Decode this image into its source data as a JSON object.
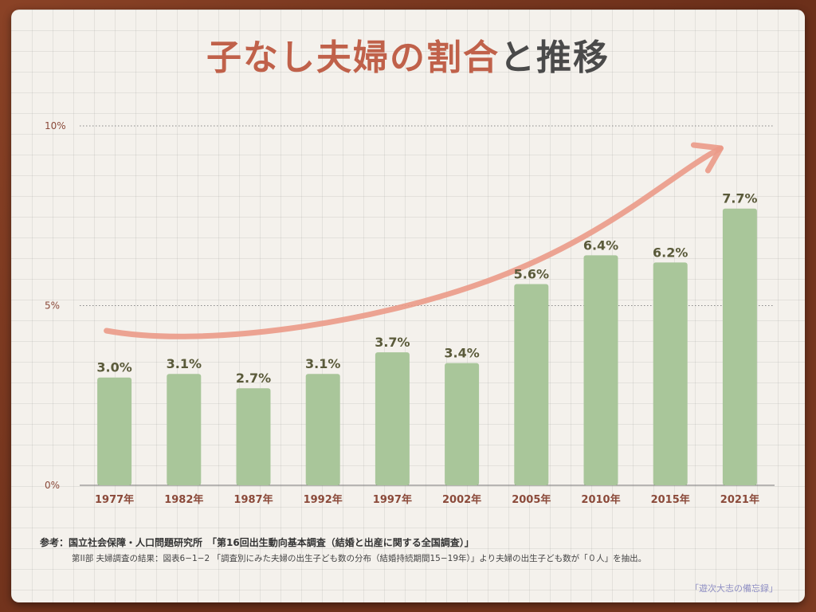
{
  "title": {
    "part1": "子なし夫婦の割合",
    "part2": "と推移"
  },
  "chart_data": {
    "type": "bar",
    "title": "子なし夫婦の割合と推移",
    "categories": [
      "1977年",
      "1982年",
      "1987年",
      "1992年",
      "1997年",
      "2002年",
      "2005年",
      "2010年",
      "2015年",
      "2021年"
    ],
    "values": [
      3.0,
      3.1,
      2.7,
      3.1,
      3.7,
      3.4,
      5.6,
      6.4,
      6.2,
      7.7
    ],
    "value_labels": [
      "3.0%",
      "3.1%",
      "2.7%",
      "3.1%",
      "3.7%",
      "3.4%",
      "5.6%",
      "6.4%",
      "6.2%",
      "7.7%"
    ],
    "ylim": [
      0,
      10
    ],
    "yticks": [
      0,
      5,
      10
    ],
    "ytick_labels": [
      "0%",
      "5%",
      "10%"
    ],
    "grid": "dotted at 5% and 10%",
    "annotation": "upward trend arrow",
    "colors": {
      "bar": "#a9c69a",
      "value_label": "#5a5a3a",
      "tick_label": "#8b4a3a",
      "arrow": "#eb9a88"
    }
  },
  "notes": {
    "line1": "参考：国立社会保障・人口問題研究所　「第16回出生動向基本調査（結婚と出産に関する全国調査）」",
    "line2": "第II部 夫婦調査の結果：図表6−1−2 「調査別にみた夫婦の出生子ども数の分布（結婚持続期間15−19年）」より夫婦の出生子ども数が「０人」を抽出。"
  },
  "credit": "「遊次大志の備忘録」"
}
